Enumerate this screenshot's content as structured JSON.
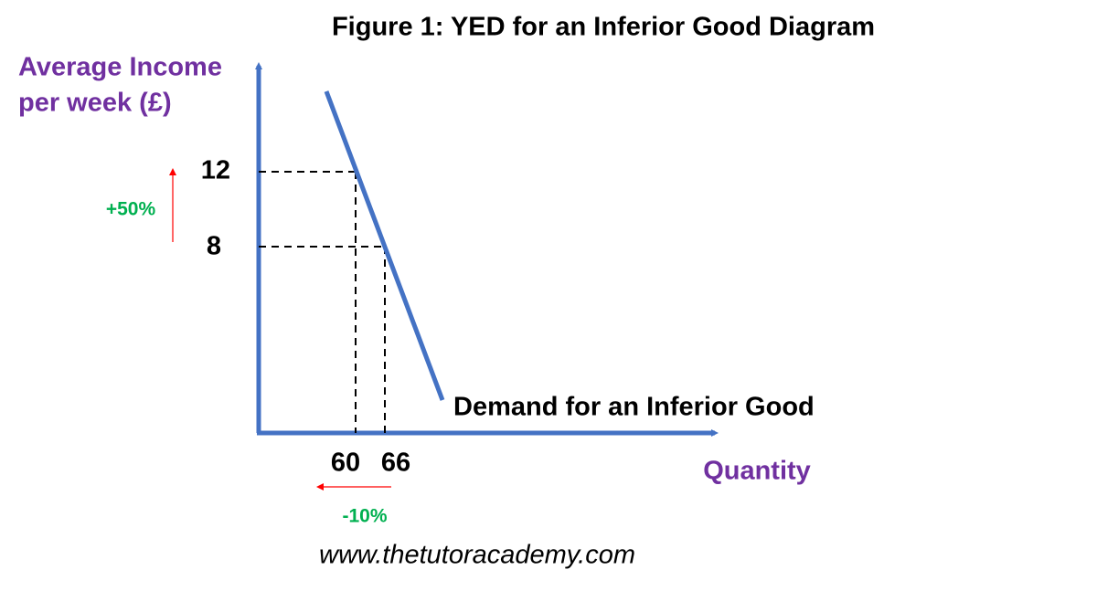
{
  "title": "Figure 1: YED for an Inferior Good Diagram",
  "y_axis_label": [
    "Average Income",
    "per week (£)"
  ],
  "x_axis_label": "Quantity",
  "curve_label": "Demand for an Inferior Good",
  "y_ticks": [
    "12",
    "8"
  ],
  "x_ticks": [
    "60",
    "66"
  ],
  "annotations": {
    "income_change": "+50%",
    "quantity_change": "-10%"
  },
  "footer": "www.thetutoracademy.com"
}
